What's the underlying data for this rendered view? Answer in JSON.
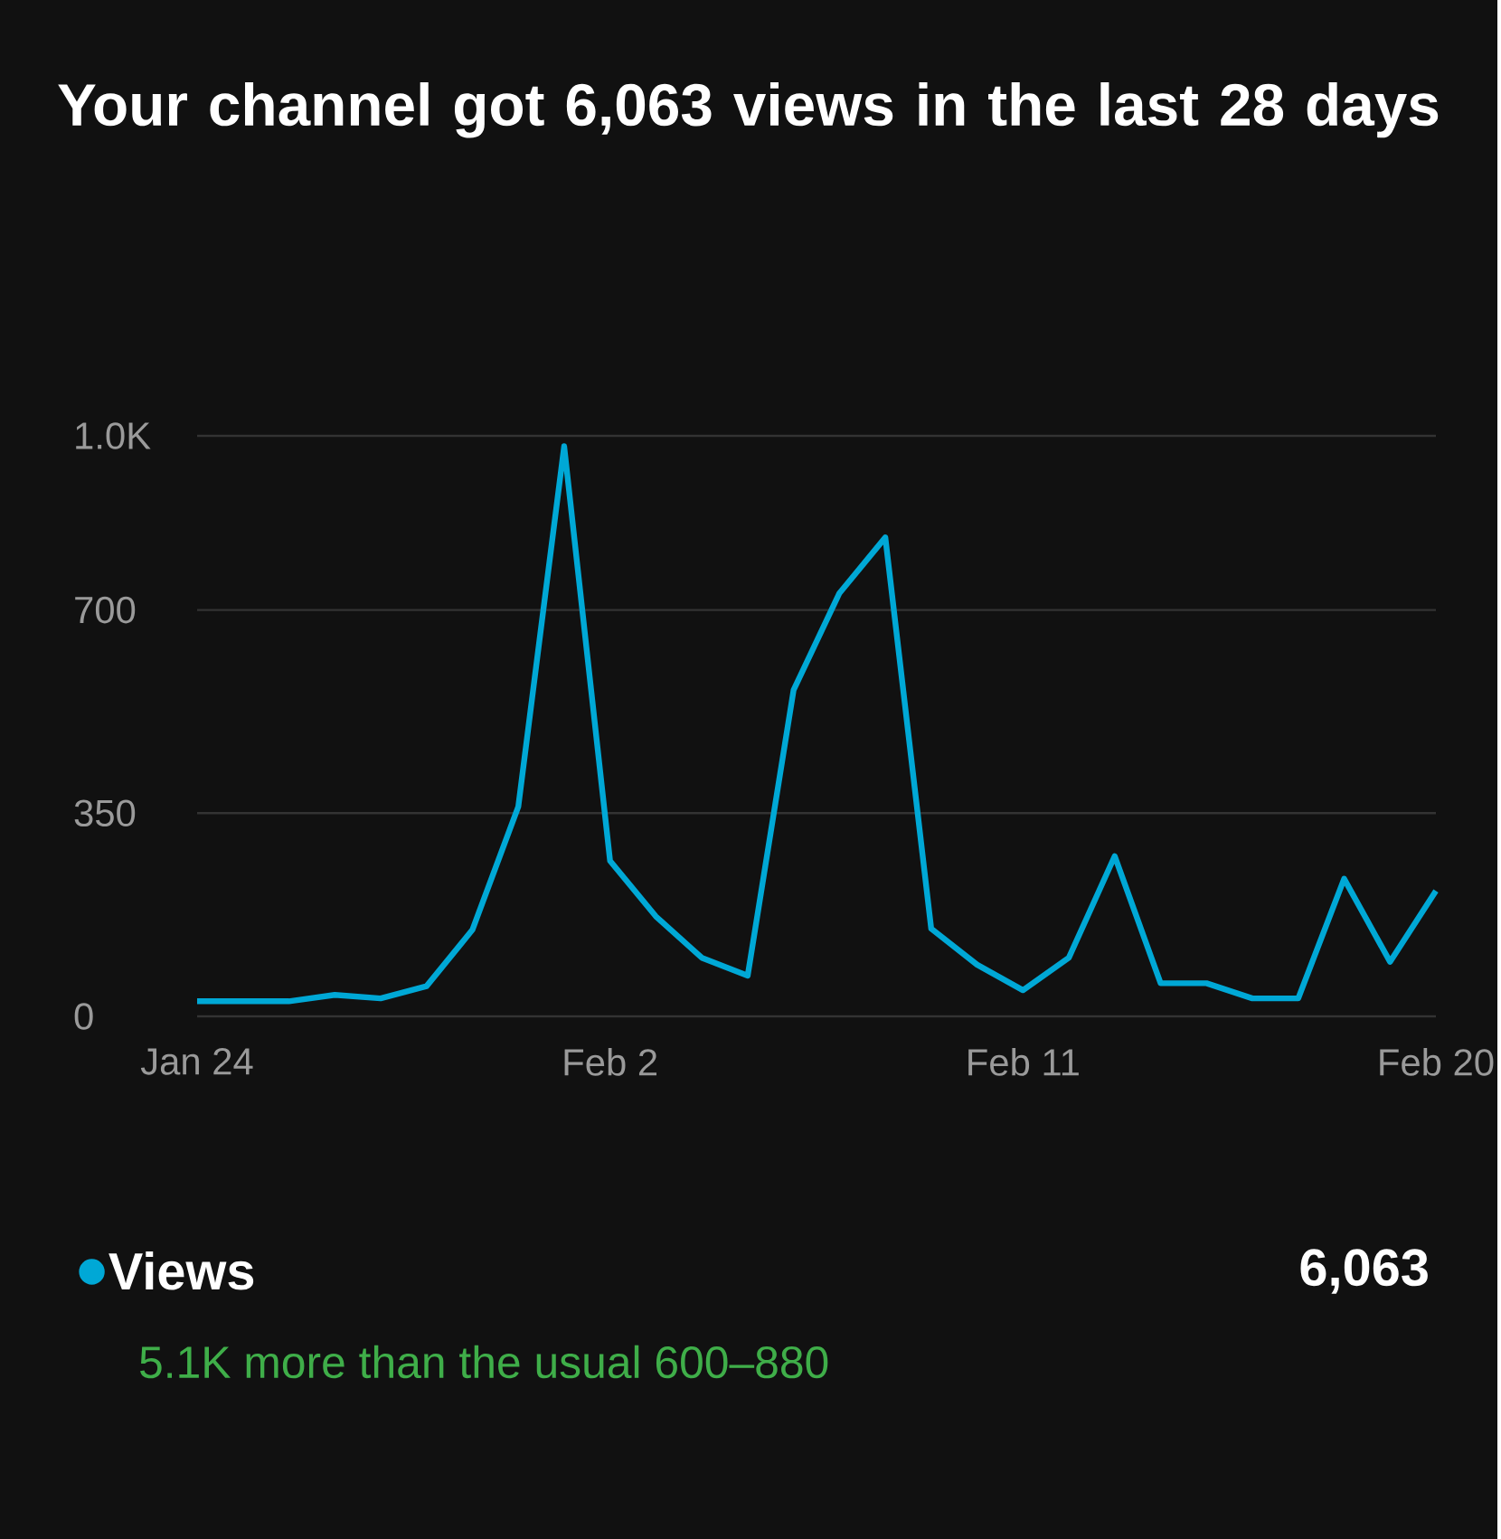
{
  "chart_data": {
    "type": "line",
    "title": "Your channel got 6,063 views in the last 28 days",
    "categories": [
      "Jan 24",
      null,
      null,
      null,
      null,
      null,
      null,
      null,
      null,
      "Feb 2",
      null,
      null,
      null,
      null,
      null,
      null,
      null,
      null,
      "Feb 11",
      null,
      null,
      null,
      null,
      null,
      null,
      null,
      null,
      "Feb 20"
    ],
    "series": [
      {
        "name": "Views",
        "color": "#00a8d6",
        "values": [
          26,
          26,
          26,
          37,
          31,
          52,
          149,
          361,
          982,
          268,
          172,
          101,
          70,
          562,
          729,
          825,
          151,
          89,
          45,
          101,
          276,
          57,
          57,
          31,
          31,
          237,
          94,
          216
        ]
      }
    ],
    "ylim": [
      0,
      1000
    ],
    "yticks": [
      0,
      350,
      700,
      {
        "value": 1000,
        "label": "1.0K"
      }
    ],
    "grid": "y",
    "legend": "bottom left",
    "annotations": [
      "6,063",
      "5.1K more than the usual 600–880"
    ]
  }
}
